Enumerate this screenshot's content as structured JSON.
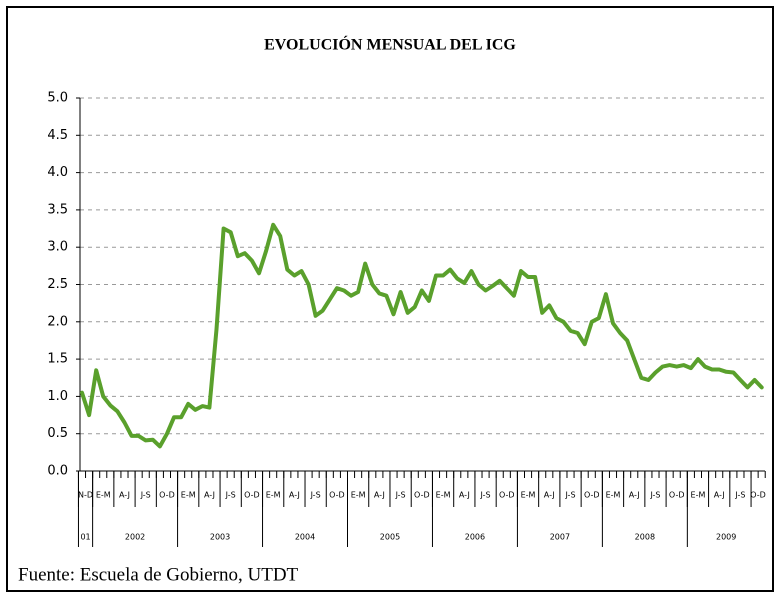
{
  "chart_data": {
    "type": "line",
    "title": "EVOLUCIÓN MENSUAL DEL ICG",
    "source": "Fuente: Escuela de Gobierno, UTDT",
    "quarters": [
      "N-D",
      "E-M",
      "A-J",
      "J-S",
      "O-D",
      "E-M",
      "A-J",
      "J-S",
      "O-D",
      "E-M",
      "A-J",
      "J-S",
      "O-D",
      "E-M",
      "A-J",
      "J-S",
      "O-D",
      "E-M",
      "A-J",
      "J-S",
      "O-D",
      "E-M",
      "A-J",
      "J-S",
      "O-D",
      "E-M",
      "A-J",
      "J-S",
      "O-D",
      "E-M",
      "A-J",
      "J-S",
      "O-D"
    ],
    "years": [
      "01",
      "2002",
      "2003",
      "2004",
      "2005",
      "2006",
      "2007",
      "2008",
      "2009"
    ],
    "values": [
      1.05,
      0.75,
      1.35,
      1.0,
      0.88,
      0.8,
      0.65,
      0.47,
      0.47,
      0.41,
      0.42,
      0.33,
      0.5,
      0.72,
      0.72,
      0.9,
      0.82,
      0.87,
      0.85,
      1.9,
      3.25,
      3.2,
      2.88,
      2.92,
      2.82,
      2.65,
      2.95,
      3.3,
      3.15,
      2.7,
      2.62,
      2.68,
      2.5,
      2.08,
      2.15,
      2.3,
      2.45,
      2.42,
      2.35,
      2.4,
      2.78,
      2.5,
      2.38,
      2.35,
      2.1,
      2.4,
      2.12,
      2.2,
      2.42,
      2.28,
      2.62,
      2.62,
      2.7,
      2.58,
      2.52,
      2.68,
      2.5,
      2.42,
      2.48,
      2.55,
      2.45,
      2.35,
      2.68,
      2.6,
      2.6,
      2.12,
      2.22,
      2.05,
      2.0,
      1.88,
      1.85,
      1.7,
      2.0,
      2.05,
      2.37,
      1.98,
      1.85,
      1.75,
      1.5,
      1.25,
      1.22,
      1.32,
      1.4,
      1.42,
      1.4,
      1.42,
      1.38,
      1.5,
      1.4,
      1.36,
      1.36,
      1.33,
      1.32,
      1.22,
      1.12,
      1.22,
      1.12
    ],
    "color": "#5aa02c",
    "ylim": [
      0,
      5
    ],
    "yticks": [
      {
        "value": 0,
        "label": "0.0"
      },
      0.5,
      {
        "value": 1,
        "label": "1.0"
      },
      1.5,
      {
        "value": 2,
        "label": "2.0"
      },
      2.5,
      {
        "value": 3,
        "label": "3.0"
      },
      3.5,
      {
        "value": 4,
        "label": "4.0"
      },
      4.5,
      {
        "value": 5,
        "label": "5.0"
      }
    ],
    "grid": true
  }
}
